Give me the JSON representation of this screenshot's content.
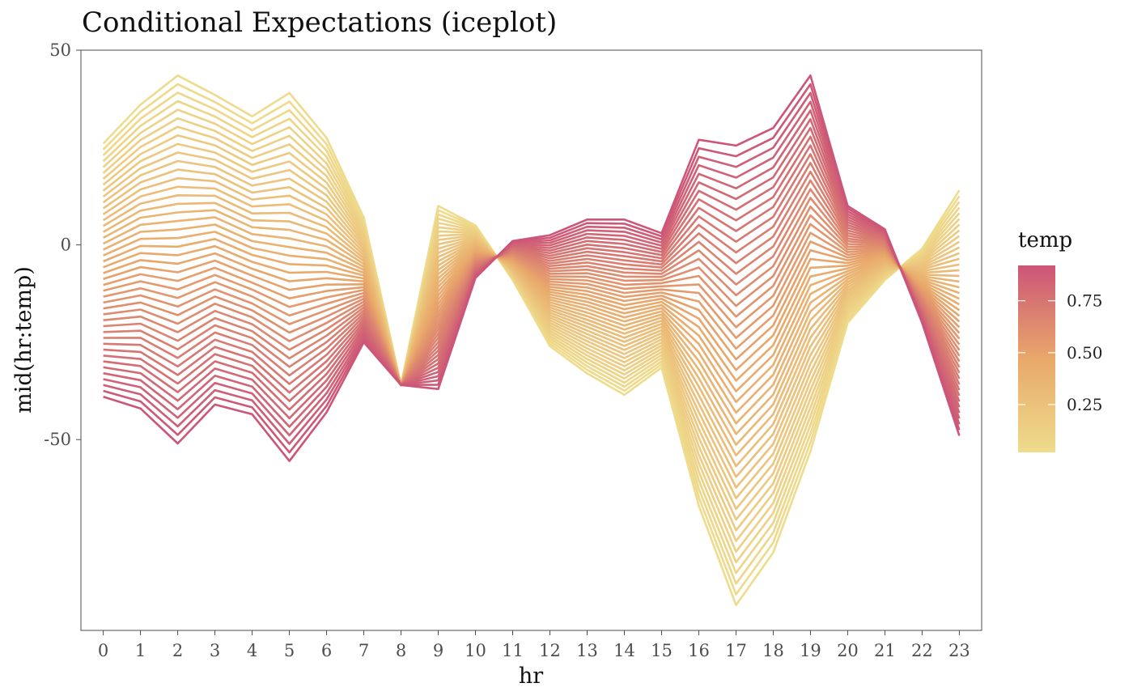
{
  "chart_data": {
    "type": "line",
    "title": "Conditional Expectations (iceplot)",
    "xlabel": "hr",
    "ylabel": "mid(hr:temp)",
    "x": [
      0,
      1,
      2,
      3,
      4,
      5,
      6,
      7,
      8,
      9,
      10,
      11,
      12,
      13,
      14,
      15,
      16,
      17,
      18,
      19,
      20,
      21,
      22,
      23
    ],
    "xlim": [
      -0.6,
      23.6
    ],
    "ylim": [
      -99,
      50
    ],
    "y_ticks": [
      50,
      0,
      -50
    ],
    "y_tick_labels": [
      "50",
      "0",
      "-50"
    ],
    "grid": false,
    "color_scale": {
      "variable": "temp",
      "low_color": "#eedc8c",
      "mid_color": "#e9a86a",
      "high_color": "#cc5578",
      "range": [
        0.02,
        0.92
      ],
      "breaks": [
        0.75,
        0.5,
        0.25
      ],
      "break_labels": [
        "0.75",
        "0.50",
        "0.25"
      ],
      "legend_position": "right"
    },
    "series_count": 44,
    "series": [
      {
        "temp": 0.02,
        "values": [
          26,
          36,
          43.5,
          38.5,
          33,
          39,
          27.5,
          7,
          -36,
          10,
          5,
          -9,
          -26,
          -33,
          -38.5,
          -31.5,
          -67,
          -92.5,
          -79,
          -53,
          -20,
          -9,
          -1,
          14
        ]
      },
      {
        "temp": 0.92,
        "values": [
          -39,
          -42,
          -51,
          -41,
          -43.5,
          -55.5,
          -43,
          -25,
          -36,
          -37,
          -8.5,
          1,
          2.5,
          6.5,
          6.5,
          3,
          27,
          25.5,
          30,
          43.5,
          10,
          4,
          -20,
          -49
        ]
      }
    ]
  }
}
